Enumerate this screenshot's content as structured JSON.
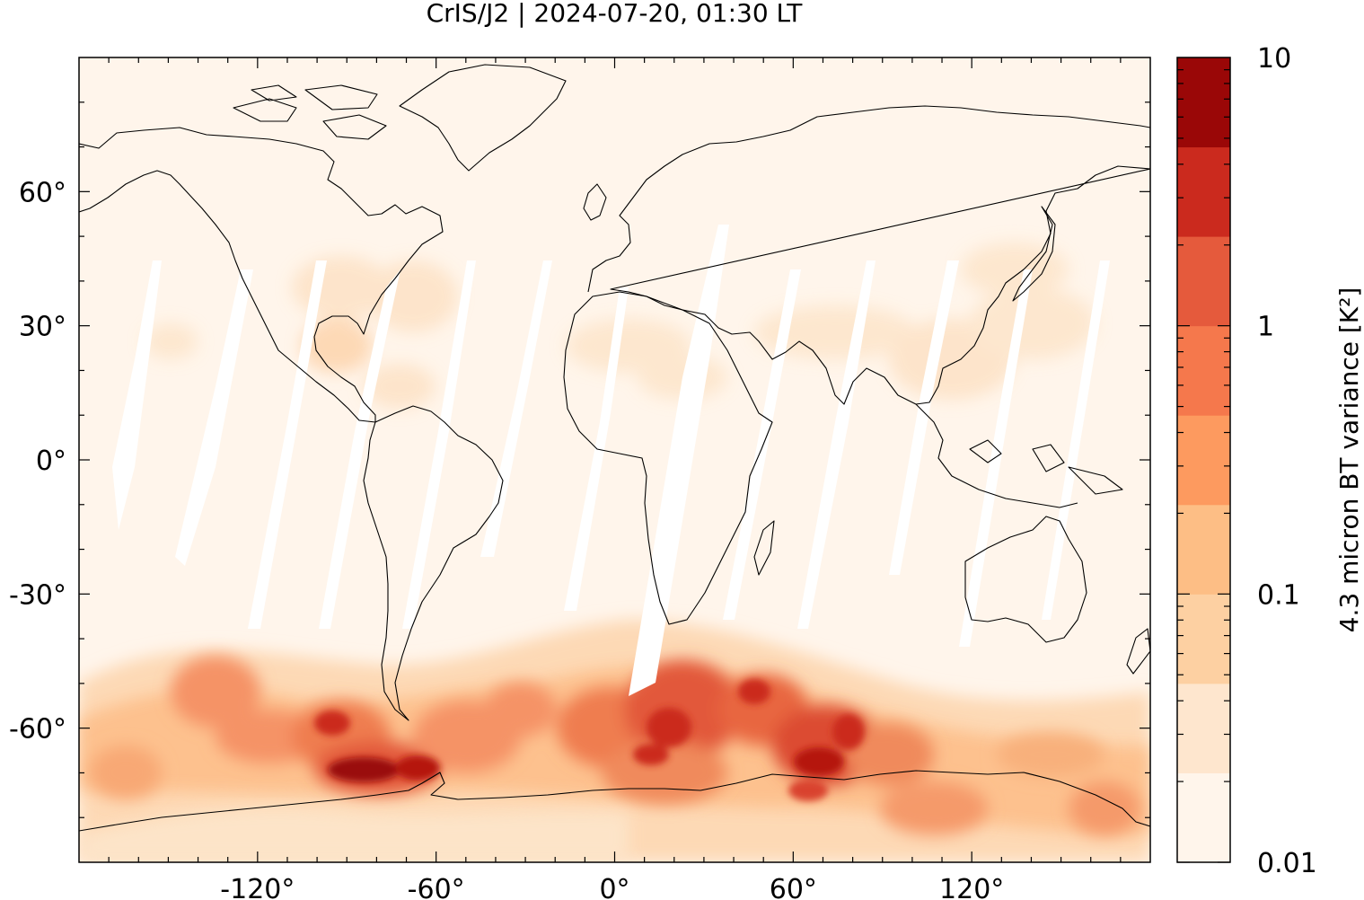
{
  "title": "CrIS/J2 | 2024-07-20, 01:30 LT",
  "map": {
    "projection": "plate-carree",
    "lon_range": [
      -180,
      180
    ],
    "lat_range": [
      -90,
      90
    ],
    "x_ticks": [
      {
        "value": -120,
        "label": "-120°"
      },
      {
        "value": -60,
        "label": "-60°"
      },
      {
        "value": 0,
        "label": "0°"
      },
      {
        "value": 60,
        "label": "60°"
      },
      {
        "value": 120,
        "label": "120°"
      }
    ],
    "y_ticks": [
      {
        "value": 60,
        "label": "60°"
      },
      {
        "value": 30,
        "label": "30°"
      },
      {
        "value": 0,
        "label": "0°"
      },
      {
        "value": -30,
        "label": "-30°"
      },
      {
        "value": -60,
        "label": "-60°"
      }
    ],
    "background_color": "#fff5eb",
    "coastline_color": "#000000"
  },
  "colorbar": {
    "label": "4.3 micron BT variance [K²]",
    "scale": "log",
    "range": [
      0.01,
      10
    ],
    "tick_labels": [
      {
        "value": 10,
        "label": "10"
      },
      {
        "value": 1,
        "label": "1"
      },
      {
        "value": 0.1,
        "label": "0.1"
      },
      {
        "value": 0.01,
        "label": "0.01"
      }
    ],
    "colors": [
      "#fff5eb",
      "#fee6ce",
      "#fdd0a2",
      "#fdbe85",
      "#fd9a5f",
      "#f5784c",
      "#e55a3c",
      "#cb2a1e",
      "#9a0707"
    ]
  },
  "features": {
    "high_variance_band": "Southern Ocean, approx. 45°S–70°S",
    "data_gaps": "white diagonal swath gaps in tropics/subtropics"
  }
}
